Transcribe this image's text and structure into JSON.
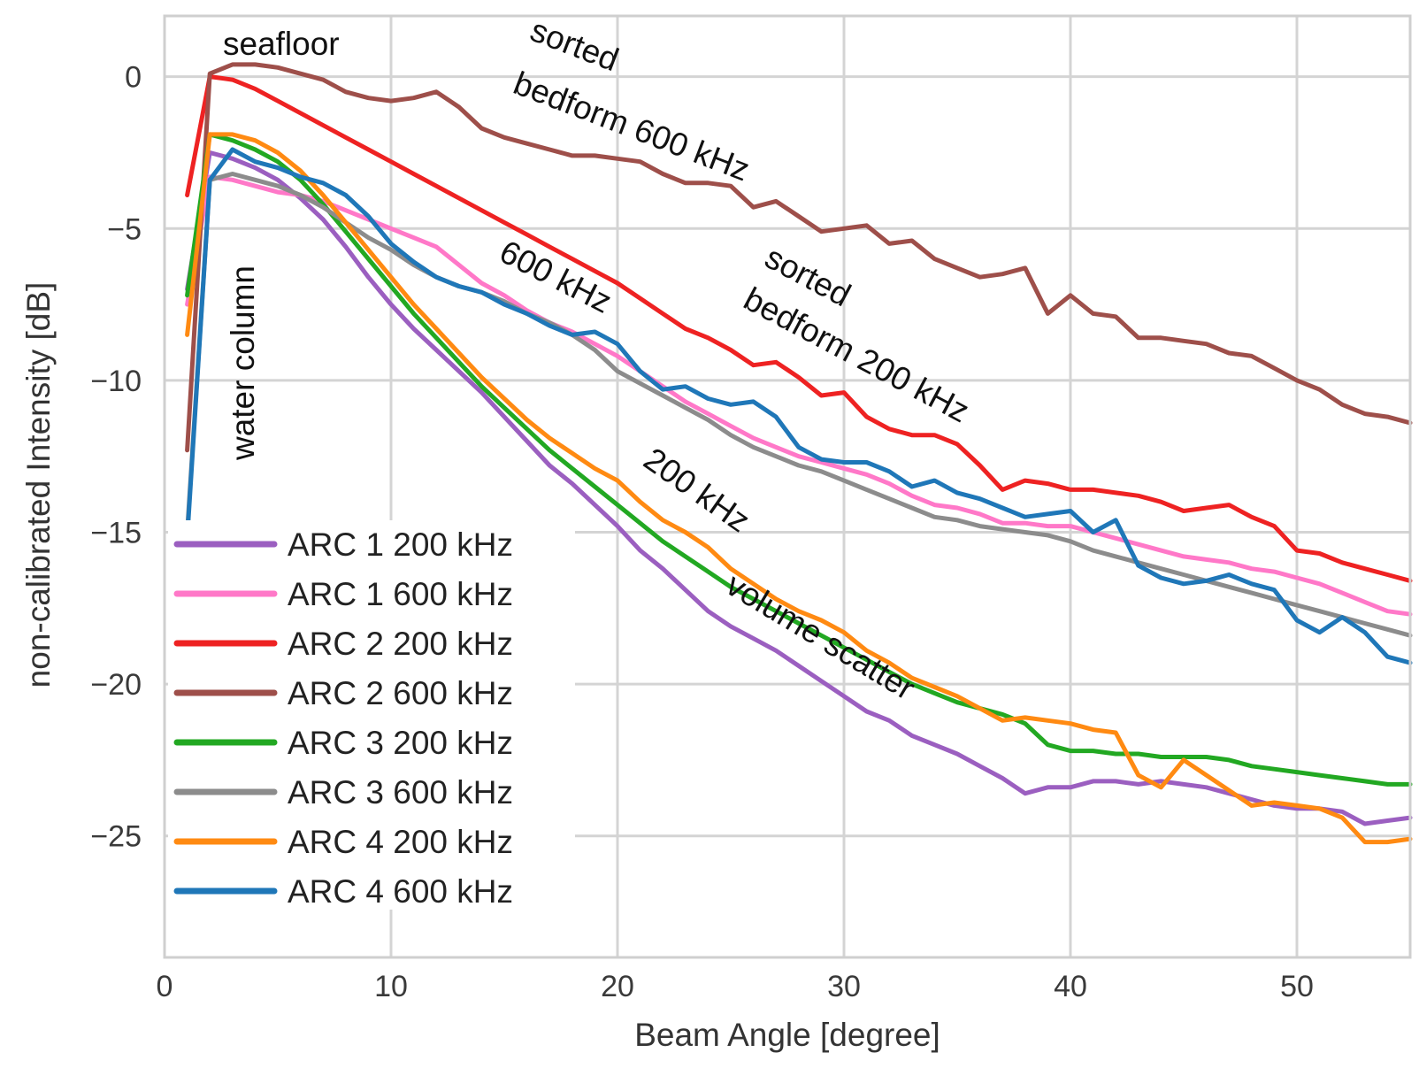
{
  "chart_data": {
    "type": "line",
    "title": "",
    "xlabel": "Beam Angle [degree]",
    "ylabel": "non-calibrated Intensity [dB]",
    "xlim": [
      0,
      55
    ],
    "ylim": [
      -29,
      2
    ],
    "xticks": [
      0,
      10,
      20,
      30,
      40,
      50
    ],
    "yticks": [
      0,
      -5,
      -10,
      -15,
      -20,
      -25
    ],
    "xtick_labels": [
      "0",
      "10",
      "20",
      "30",
      "40",
      "50"
    ],
    "ytick_labels": [
      "0",
      "−5",
      "−10",
      "−15",
      "−20",
      "−25"
    ],
    "grid": true,
    "legend_position": "bottom-left",
    "series": [
      {
        "name": "ARC 1 200 kHz",
        "color": "#9b5fc0",
        "x": [
          1,
          2,
          3,
          4,
          5,
          6,
          7,
          8,
          9,
          10,
          11,
          12,
          13,
          14,
          15,
          16,
          17,
          18,
          19,
          20,
          21,
          22,
          23,
          24,
          25,
          26,
          27,
          28,
          29,
          30,
          31,
          32,
          33,
          34,
          35,
          36,
          37,
          38,
          39,
          40,
          41,
          42,
          43,
          44,
          45,
          46,
          47,
          48,
          49,
          50,
          51,
          52,
          53,
          54,
          55
        ],
        "y": [
          -7,
          -2.5,
          -2.7,
          -3,
          -3.4,
          -4,
          -4.7,
          -5.6,
          -6.6,
          -7.5,
          -8.3,
          -9,
          -9.7,
          -10.4,
          -11.2,
          -12,
          -12.8,
          -13.4,
          -14.1,
          -14.8,
          -15.6,
          -16.2,
          -16.9,
          -17.6,
          -18.1,
          -18.5,
          -18.9,
          -19.4,
          -19.9,
          -20.4,
          -20.9,
          -21.2,
          -21.7,
          -22,
          -22.3,
          -22.7,
          -23.1,
          -23.6,
          -23.4,
          -23.4,
          -23.2,
          -23.2,
          -23.3,
          -23.2,
          -23.3,
          -23.4,
          -23.6,
          -23.8,
          -24,
          -24.1,
          -24.1,
          -24.2,
          -24.6,
          -24.5,
          -24.4
        ]
      },
      {
        "name": "ARC 1 600 kHz",
        "color": "#ff78c8",
        "x": [
          1,
          2,
          3,
          4,
          5,
          6,
          7,
          8,
          9,
          10,
          11,
          12,
          13,
          14,
          15,
          16,
          17,
          18,
          19,
          20,
          21,
          22,
          23,
          24,
          25,
          26,
          27,
          28,
          29,
          30,
          31,
          32,
          33,
          34,
          35,
          36,
          37,
          38,
          39,
          40,
          41,
          42,
          43,
          44,
          45,
          46,
          47,
          48,
          49,
          50,
          51,
          52,
          53,
          54,
          55
        ],
        "y": [
          -7.5,
          -3.3,
          -3.4,
          -3.6,
          -3.8,
          -3.9,
          -4.1,
          -4.4,
          -4.7,
          -5,
          -5.3,
          -5.6,
          -6.2,
          -6.8,
          -7.2,
          -7.7,
          -8.1,
          -8.4,
          -8.8,
          -9.2,
          -9.7,
          -10.2,
          -10.7,
          -11.1,
          -11.5,
          -11.9,
          -12.2,
          -12.5,
          -12.7,
          -12.9,
          -13.1,
          -13.4,
          -13.8,
          -14.1,
          -14.2,
          -14.4,
          -14.7,
          -14.7,
          -14.8,
          -14.8,
          -15,
          -15.2,
          -15.4,
          -15.6,
          -15.8,
          -15.9,
          -16,
          -16.2,
          -16.3,
          -16.5,
          -16.7,
          -17,
          -17.3,
          -17.6,
          -17.7
        ]
      },
      {
        "name": "ARC 2 200 kHz",
        "color": "#ee2222",
        "x": [
          1,
          2,
          3,
          4,
          5,
          6,
          7,
          8,
          9,
          10,
          11,
          12,
          13,
          14,
          15,
          16,
          17,
          18,
          19,
          20,
          21,
          22,
          23,
          24,
          25,
          26,
          27,
          28,
          29,
          30,
          31,
          32,
          33,
          34,
          35,
          36,
          37,
          38,
          39,
          40,
          41,
          42,
          43,
          44,
          45,
          46,
          47,
          48,
          49,
          50,
          51,
          52,
          53,
          54,
          55
        ],
        "y": [
          -3.9,
          0,
          -0.1,
          -0.4,
          -0.8,
          -1.2,
          -1.6,
          -2,
          -2.4,
          -2.8,
          -3.2,
          -3.6,
          -4,
          -4.4,
          -4.8,
          -5.2,
          -5.6,
          -6,
          -6.4,
          -6.8,
          -7.3,
          -7.8,
          -8.3,
          -8.6,
          -9,
          -9.5,
          -9.4,
          -9.9,
          -10.5,
          -10.4,
          -11.2,
          -11.6,
          -11.8,
          -11.8,
          -12.1,
          -12.8,
          -13.6,
          -13.3,
          -13.4,
          -13.6,
          -13.6,
          -13.7,
          -13.8,
          -14,
          -14.3,
          -14.2,
          -14.1,
          -14.5,
          -14.8,
          -15.6,
          -15.7,
          -16,
          -16.2,
          -16.4,
          -16.6
        ]
      },
      {
        "name": "ARC 2 600 kHz",
        "color": "#9e4f4a",
        "x": [
          1,
          2,
          3,
          4,
          5,
          6,
          7,
          8,
          9,
          10,
          11,
          12,
          13,
          14,
          15,
          16,
          17,
          18,
          19,
          20,
          21,
          22,
          23,
          24,
          25,
          26,
          27,
          28,
          29,
          30,
          31,
          32,
          33,
          34,
          35,
          36,
          37,
          38,
          39,
          40,
          41,
          42,
          43,
          44,
          45,
          46,
          47,
          48,
          49,
          50,
          51,
          52,
          53,
          54,
          55
        ],
        "y": [
          -12.3,
          0.1,
          0.4,
          0.4,
          0.3,
          0.1,
          -0.1,
          -0.5,
          -0.7,
          -0.8,
          -0.7,
          -0.5,
          -1,
          -1.7,
          -2,
          -2.2,
          -2.4,
          -2.6,
          -2.6,
          -2.7,
          -2.8,
          -3.2,
          -3.5,
          -3.5,
          -3.6,
          -4.3,
          -4.1,
          -4.6,
          -5.1,
          -5,
          -4.9,
          -5.5,
          -5.4,
          -6,
          -6.3,
          -6.6,
          -6.5,
          -6.3,
          -7.8,
          -7.2,
          -7.8,
          -7.9,
          -8.6,
          -8.6,
          -8.7,
          -8.8,
          -9.1,
          -9.2,
          -9.6,
          -10,
          -10.3,
          -10.8,
          -11.1,
          -11.2,
          -11.4
        ]
      },
      {
        "name": "ARC 3 200 kHz",
        "color": "#22a822",
        "x": [
          1,
          2,
          3,
          4,
          5,
          6,
          7,
          8,
          9,
          10,
          11,
          12,
          13,
          14,
          15,
          16,
          17,
          18,
          19,
          20,
          21,
          22,
          23,
          24,
          25,
          26,
          27,
          28,
          29,
          30,
          31,
          32,
          33,
          34,
          35,
          36,
          37,
          38,
          39,
          40,
          41,
          42,
          43,
          44,
          45,
          46,
          47,
          48,
          49,
          50,
          51,
          52,
          53,
          54,
          55
        ],
        "y": [
          -7.2,
          -1.9,
          -2.1,
          -2.4,
          -2.8,
          -3.4,
          -4.2,
          -5.1,
          -6,
          -6.9,
          -7.8,
          -8.6,
          -9.4,
          -10.2,
          -10.9,
          -11.6,
          -12.3,
          -12.9,
          -13.5,
          -14.1,
          -14.7,
          -15.3,
          -15.8,
          -16.3,
          -16.8,
          -17.2,
          -17.6,
          -18,
          -18.4,
          -18.8,
          -19.2,
          -19.6,
          -20,
          -20.3,
          -20.6,
          -20.8,
          -21,
          -21.3,
          -22,
          -22.2,
          -22.2,
          -22.3,
          -22.3,
          -22.4,
          -22.4,
          -22.4,
          -22.5,
          -22.7,
          -22.8,
          -22.9,
          -23,
          -23.1,
          -23.2,
          -23.3,
          -23.3
        ]
      },
      {
        "name": "ARC 3 600 kHz",
        "color": "#8c8c8c",
        "x": [
          1,
          2,
          3,
          4,
          5,
          6,
          7,
          8,
          9,
          10,
          11,
          12,
          13,
          14,
          15,
          16,
          17,
          18,
          19,
          20,
          21,
          22,
          23,
          24,
          25,
          26,
          27,
          28,
          29,
          30,
          31,
          32,
          33,
          34,
          35,
          36,
          37,
          38,
          39,
          40,
          41,
          42,
          43,
          44,
          45,
          46,
          47,
          48,
          49,
          50,
          51,
          52,
          53,
          54,
          55
        ],
        "y": [
          -15,
          -3.4,
          -3.2,
          -3.4,
          -3.6,
          -3.9,
          -4.3,
          -4.8,
          -5.3,
          -5.7,
          -6.2,
          -6.6,
          -6.9,
          -7.1,
          -7.4,
          -7.8,
          -8.1,
          -8.5,
          -9,
          -9.7,
          -10.1,
          -10.5,
          -10.9,
          -11.3,
          -11.8,
          -12.2,
          -12.5,
          -12.8,
          -13,
          -13.3,
          -13.6,
          -13.9,
          -14.2,
          -14.5,
          -14.6,
          -14.8,
          -14.9,
          -15,
          -15.1,
          -15.3,
          -15.6,
          -15.8,
          -16,
          -16.2,
          -16.4,
          -16.6,
          -16.8,
          -17,
          -17.2,
          -17.4,
          -17.6,
          -17.8,
          -18,
          -18.2,
          -18.4
        ]
      },
      {
        "name": "ARC 4 200 kHz",
        "color": "#ff8a12",
        "x": [
          1,
          2,
          3,
          4,
          5,
          6,
          7,
          8,
          9,
          10,
          11,
          12,
          13,
          14,
          15,
          16,
          17,
          18,
          19,
          20,
          21,
          22,
          23,
          24,
          25,
          26,
          27,
          28,
          29,
          30,
          31,
          32,
          33,
          34,
          35,
          36,
          37,
          38,
          39,
          40,
          41,
          42,
          43,
          44,
          45,
          46,
          47,
          48,
          49,
          50,
          51,
          52,
          53,
          54,
          55
        ],
        "y": [
          -8.5,
          -1.9,
          -1.9,
          -2.1,
          -2.5,
          -3.1,
          -3.9,
          -4.8,
          -5.7,
          -6.6,
          -7.5,
          -8.3,
          -9.1,
          -9.9,
          -10.6,
          -11.3,
          -11.9,
          -12.4,
          -12.9,
          -13.3,
          -14,
          -14.6,
          -15,
          -15.5,
          -16.2,
          -16.7,
          -17.2,
          -17.6,
          -17.9,
          -18.3,
          -18.9,
          -19.3,
          -19.8,
          -20.1,
          -20.4,
          -20.8,
          -21.2,
          -21.1,
          -21.2,
          -21.3,
          -21.5,
          -21.6,
          -23,
          -23.4,
          -22.5,
          -23,
          -23.5,
          -24,
          -23.9,
          -24,
          -24.1,
          -24.4,
          -25.2,
          -25.2,
          -25.1
        ]
      },
      {
        "name": "ARC 4 600 kHz",
        "color": "#1f77b8",
        "x": [
          1,
          2,
          3,
          4,
          5,
          6,
          7,
          8,
          9,
          10,
          11,
          12,
          13,
          14,
          15,
          16,
          17,
          18,
          19,
          20,
          21,
          22,
          23,
          24,
          25,
          26,
          27,
          28,
          29,
          30,
          31,
          32,
          33,
          34,
          35,
          36,
          37,
          38,
          39,
          40,
          41,
          42,
          43,
          44,
          45,
          46,
          47,
          48,
          49,
          50,
          51,
          52,
          53,
          54,
          55
        ],
        "y": [
          -15.2,
          -3.4,
          -2.4,
          -2.8,
          -3,
          -3.3,
          -3.5,
          -3.9,
          -4.6,
          -5.5,
          -6.1,
          -6.6,
          -6.9,
          -7.1,
          -7.5,
          -7.8,
          -8.2,
          -8.5,
          -8.4,
          -8.8,
          -9.7,
          -10.3,
          -10.2,
          -10.6,
          -10.8,
          -10.7,
          -11.2,
          -12.2,
          -12.6,
          -12.7,
          -12.7,
          -13,
          -13.5,
          -13.3,
          -13.7,
          -13.9,
          -14.2,
          -14.5,
          -14.4,
          -14.3,
          -15,
          -14.6,
          -16.1,
          -16.5,
          -16.7,
          -16.6,
          -16.4,
          -16.7,
          -16.9,
          -17.9,
          -18.3,
          -17.8,
          -18.3,
          -19.1,
          -19.3
        ]
      }
    ],
    "annotations": [
      {
        "text": "seafloor"
      },
      {
        "text": "water column"
      },
      {
        "text": "sorted"
      },
      {
        "text": "bedform 600 kHz"
      },
      {
        "text": "600 kHz"
      },
      {
        "text": "sorted"
      },
      {
        "text": "bedform 200 kHz"
      },
      {
        "text": "200 kHz"
      },
      {
        "text": "volume scatter"
      }
    ]
  }
}
